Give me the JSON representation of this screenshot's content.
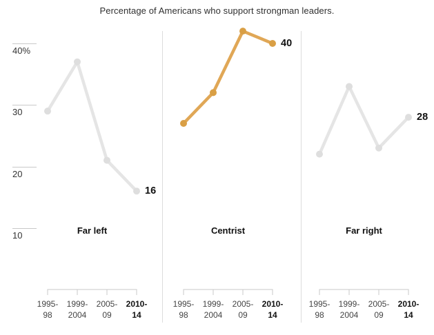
{
  "chart_data": {
    "type": "line",
    "title": "Percentage of Americans who support strongman leaders.",
    "layout": "three small-multiple line panels sharing one y-axis on the left; grid off; highlighted middle panel",
    "x_categories": [
      [
        "1995-",
        "98"
      ],
      [
        "1999-",
        "2004"
      ],
      [
        "2005-",
        "09"
      ],
      [
        "2010-",
        "14"
      ]
    ],
    "x_last_category_bold": true,
    "y_axis": {
      "ticks": [
        {
          "value": 40,
          "label": "40%"
        },
        {
          "value": 30,
          "label": "30"
        },
        {
          "value": 20,
          "label": "20"
        },
        {
          "value": 10,
          "label": "10"
        }
      ],
      "range": [
        10,
        44
      ]
    },
    "panels": [
      {
        "label": "Far left",
        "values": [
          29,
          37,
          21,
          16
        ],
        "end_value_label": "16",
        "highlighted": false
      },
      {
        "label": "Centrist",
        "values": [
          27,
          32,
          42,
          40
        ],
        "end_value_label": "40",
        "highlighted": true
      },
      {
        "label": "Far right",
        "values": [
          22,
          33,
          23,
          28
        ],
        "end_value_label": "28",
        "highlighted": false
      }
    ],
    "colors": {
      "highlight_line": "#e0a756",
      "highlight_dot": "#d99f45",
      "muted_line": "#e5e5e5",
      "muted_dot": "#dedede",
      "axis": "#c8c8c8",
      "separator": "#dcdcdc",
      "label_dark": "#111111",
      "label_gray": "#444444",
      "title_gray": "#2f2f2f"
    }
  }
}
